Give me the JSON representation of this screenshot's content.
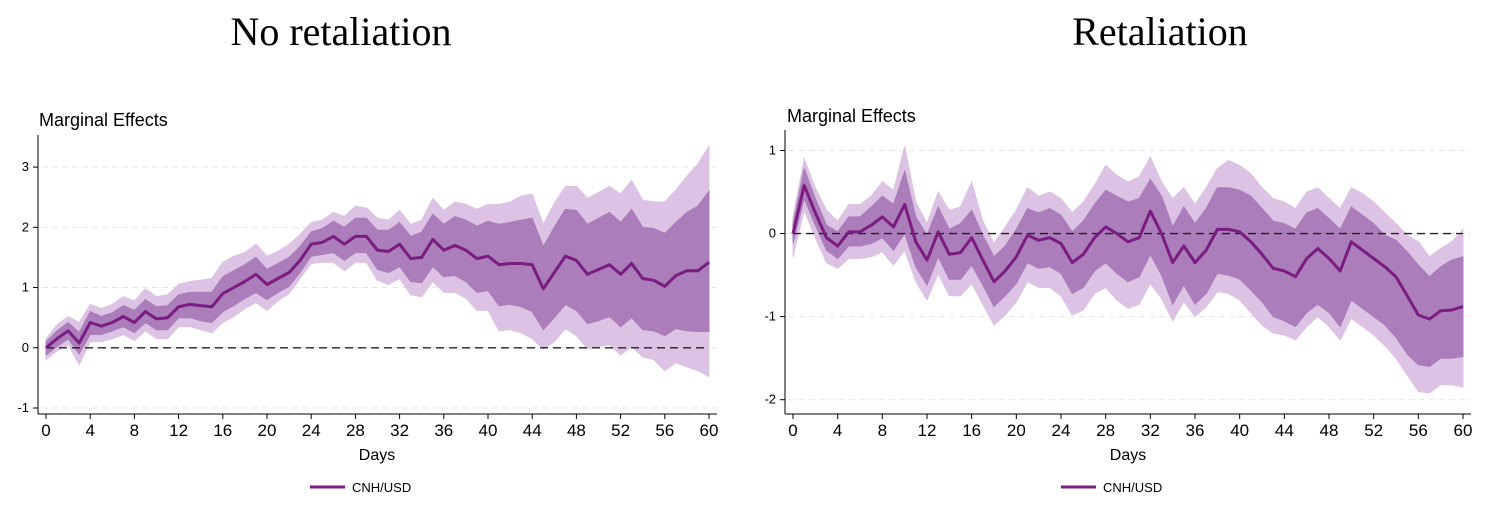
{
  "panels": [
    {
      "title": "No retaliation"
    },
    {
      "title": "Retaliation"
    }
  ],
  "chart_data": [
    {
      "type": "area",
      "title": "No retaliation",
      "ylabel": "Marginal Effects",
      "xlabel": "Days",
      "xlim": [
        0,
        60
      ],
      "ylim": [
        -1,
        3.4
      ],
      "xticks": [
        0,
        4,
        8,
        12,
        16,
        20,
        24,
        28,
        32,
        36,
        40,
        44,
        48,
        52,
        56,
        60
      ],
      "yticks": [
        -1,
        0,
        1,
        2,
        3
      ],
      "grid": true,
      "reference_line": 0,
      "legend_position": "bottom-center",
      "colors": {
        "line": "#7a1c82",
        "inner_band": "#ab7dba",
        "outer_band": "#dcc3e3"
      },
      "series": [
        {
          "name": "CNH/USD",
          "x": [
            0,
            1,
            2,
            3,
            4,
            5,
            6,
            7,
            8,
            9,
            10,
            11,
            12,
            13,
            14,
            15,
            16,
            17,
            18,
            19,
            20,
            21,
            22,
            23,
            24,
            25,
            26,
            27,
            28,
            29,
            30,
            31,
            32,
            33,
            34,
            35,
            36,
            37,
            38,
            39,
            40,
            41,
            42,
            43,
            44,
            45,
            46,
            47,
            48,
            49,
            50,
            51,
            52,
            53,
            54,
            55,
            56,
            57,
            58,
            59,
            60
          ],
          "y": [
            0.0,
            0.15,
            0.28,
            0.08,
            0.42,
            0.36,
            0.42,
            0.52,
            0.42,
            0.6,
            0.48,
            0.5,
            0.68,
            0.72,
            0.7,
            0.68,
            0.9,
            1.0,
            1.1,
            1.22,
            1.05,
            1.15,
            1.25,
            1.45,
            1.72,
            1.75,
            1.85,
            1.72,
            1.85,
            1.85,
            1.62,
            1.6,
            1.72,
            1.48,
            1.5,
            1.8,
            1.62,
            1.7,
            1.62,
            1.48,
            1.52,
            1.38,
            1.4,
            1.4,
            1.38,
            0.98,
            1.25,
            1.52,
            1.45,
            1.22,
            1.3,
            1.38,
            1.22,
            1.4,
            1.15,
            1.12,
            1.02,
            1.2,
            1.28,
            1.28,
            1.42
          ],
          "ci_inner": {
            "lower": [
              -0.12,
              0.02,
              0.15,
              -0.1,
              0.22,
              0.22,
              0.28,
              0.35,
              0.25,
              0.42,
              0.3,
              0.3,
              0.5,
              0.5,
              0.45,
              0.42,
              0.6,
              0.7,
              0.82,
              0.92,
              0.8,
              0.92,
              1.02,
              1.25,
              1.52,
              1.55,
              1.58,
              1.45,
              1.58,
              1.58,
              1.3,
              1.25,
              1.35,
              1.1,
              1.08,
              1.35,
              1.18,
              1.2,
              1.1,
              0.92,
              0.95,
              0.7,
              0.72,
              0.68,
              0.6,
              0.3,
              0.5,
              0.72,
              0.62,
              0.4,
              0.45,
              0.52,
              0.35,
              0.5,
              0.3,
              0.28,
              0.2,
              0.32,
              0.28,
              0.27,
              0.27
            ],
            "upper": [
              0.1,
              0.28,
              0.42,
              0.25,
              0.6,
              0.52,
              0.58,
              0.7,
              0.62,
              0.8,
              0.68,
              0.7,
              0.88,
              0.92,
              0.92,
              0.92,
              1.18,
              1.28,
              1.38,
              1.5,
              1.3,
              1.4,
              1.5,
              1.68,
              1.92,
              1.98,
              2.1,
              2.0,
              2.15,
              2.15,
              1.95,
              1.95,
              2.08,
              1.85,
              1.92,
              2.22,
              2.05,
              2.18,
              2.12,
              2.02,
              2.1,
              2.05,
              2.08,
              2.12,
              2.15,
              1.68,
              2.0,
              2.3,
              2.28,
              2.05,
              2.15,
              2.25,
              2.08,
              2.3,
              2.0,
              1.98,
              1.9,
              2.08,
              2.25,
              2.35,
              2.6
            ]
          },
          "ci_outer": {
            "lower": [
              -0.2,
              -0.05,
              0.05,
              -0.28,
              0.1,
              0.1,
              0.15,
              0.22,
              0.12,
              0.28,
              0.15,
              0.15,
              0.35,
              0.35,
              0.3,
              0.25,
              0.42,
              0.52,
              0.65,
              0.75,
              0.62,
              0.78,
              0.9,
              1.15,
              1.4,
              1.42,
              1.42,
              1.28,
              1.42,
              1.42,
              1.12,
              1.05,
              1.15,
              0.88,
              0.85,
              1.1,
              0.92,
              0.92,
              0.82,
              0.62,
              0.62,
              0.28,
              0.3,
              0.25,
              0.15,
              -0.02,
              0.1,
              0.32,
              0.2,
              -0.02,
              0.02,
              0.05,
              -0.12,
              0.02,
              -0.15,
              -0.2,
              -0.38,
              -0.25,
              -0.32,
              -0.38,
              -0.48
            ],
            "upper": [
              0.15,
              0.38,
              0.52,
              0.42,
              0.72,
              0.65,
              0.72,
              0.85,
              0.78,
              0.98,
              0.85,
              0.88,
              1.05,
              1.1,
              1.12,
              1.15,
              1.42,
              1.52,
              1.58,
              1.72,
              1.52,
              1.6,
              1.72,
              1.88,
              2.08,
              2.12,
              2.25,
              2.18,
              2.35,
              2.32,
              2.15,
              2.12,
              2.28,
              2.05,
              2.12,
              2.48,
              2.28,
              2.42,
              2.38,
              2.3,
              2.38,
              2.38,
              2.42,
              2.52,
              2.55,
              2.05,
              2.4,
              2.68,
              2.68,
              2.48,
              2.58,
              2.68,
              2.55,
              2.78,
              2.45,
              2.42,
              2.42,
              2.62,
              2.85,
              3.05,
              3.35
            ]
          }
        }
      ]
    },
    {
      "type": "area",
      "title": "Retaliation",
      "ylabel": "Marginal Effects",
      "xlabel": "Days",
      "xlim": [
        0,
        60
      ],
      "ylim": [
        -2.1,
        1.15
      ],
      "xticks": [
        0,
        4,
        8,
        12,
        16,
        20,
        24,
        28,
        32,
        36,
        40,
        44,
        48,
        52,
        56,
        60
      ],
      "yticks": [
        -2,
        -1,
        0,
        1
      ],
      "grid": true,
      "reference_line": 0,
      "legend_position": "bottom-center",
      "colors": {
        "line": "#7a1c82",
        "inner_band": "#ab7dba",
        "outer_band": "#dcc3e3"
      },
      "series": [
        {
          "name": "CNH/USD",
          "x": [
            0,
            1,
            2,
            3,
            4,
            5,
            6,
            7,
            8,
            9,
            10,
            11,
            12,
            13,
            14,
            15,
            16,
            17,
            18,
            19,
            20,
            21,
            22,
            23,
            24,
            25,
            26,
            27,
            28,
            29,
            30,
            31,
            32,
            33,
            34,
            35,
            36,
            37,
            38,
            39,
            40,
            41,
            42,
            43,
            44,
            45,
            46,
            47,
            48,
            49,
            50,
            51,
            52,
            53,
            54,
            55,
            56,
            57,
            58,
            59,
            60
          ],
          "y": [
            0.0,
            0.58,
            0.25,
            -0.05,
            -0.15,
            0.02,
            0.02,
            0.1,
            0.2,
            0.08,
            0.35,
            -0.1,
            -0.32,
            0.02,
            -0.25,
            -0.23,
            -0.05,
            -0.32,
            -0.58,
            -0.45,
            -0.28,
            -0.02,
            -0.08,
            -0.05,
            -0.12,
            -0.35,
            -0.25,
            -0.05,
            0.08,
            0.0,
            -0.1,
            -0.05,
            0.27,
            0.0,
            -0.35,
            -0.15,
            -0.35,
            -0.2,
            0.05,
            0.05,
            0.02,
            -0.1,
            -0.25,
            -0.42,
            -0.45,
            -0.52,
            -0.3,
            -0.18,
            -0.3,
            -0.45,
            -0.1,
            -0.2,
            -0.3,
            -0.4,
            -0.52,
            -0.75,
            -0.98,
            -1.03,
            -0.93,
            -0.92,
            -0.88
          ],
          "ci_inner": {
            "lower": [
              -0.12,
              0.42,
              0.1,
              -0.2,
              -0.3,
              -0.15,
              -0.15,
              -0.12,
              -0.05,
              -0.2,
              0.0,
              -0.4,
              -0.62,
              -0.28,
              -0.55,
              -0.55,
              -0.38,
              -0.62,
              -0.88,
              -0.75,
              -0.6,
              -0.35,
              -0.42,
              -0.4,
              -0.48,
              -0.72,
              -0.65,
              -0.45,
              -0.35,
              -0.48,
              -0.58,
              -0.52,
              -0.25,
              -0.5,
              -0.85,
              -0.62,
              -0.85,
              -0.72,
              -0.48,
              -0.5,
              -0.55,
              -0.68,
              -0.82,
              -1.0,
              -1.05,
              -1.12,
              -0.95,
              -0.85,
              -0.95,
              -1.12,
              -0.8,
              -0.9,
              -1.0,
              -1.1,
              -1.25,
              -1.45,
              -1.58,
              -1.6,
              -1.5,
              -1.5,
              -1.48
            ],
            "upper": [
              0.12,
              0.78,
              0.42,
              0.1,
              0.02,
              0.2,
              0.2,
              0.32,
              0.45,
              0.35,
              0.75,
              0.2,
              -0.02,
              0.32,
              0.05,
              0.12,
              0.28,
              -0.02,
              -0.28,
              -0.15,
              0.05,
              0.3,
              0.25,
              0.3,
              0.22,
              0.02,
              0.15,
              0.35,
              0.52,
              0.45,
              0.38,
              0.42,
              0.65,
              0.45,
              0.08,
              0.32,
              0.12,
              0.3,
              0.55,
              0.55,
              0.52,
              0.45,
              0.3,
              0.15,
              0.12,
              0.05,
              0.25,
              0.3,
              0.18,
              0.05,
              0.32,
              0.22,
              0.12,
              -0.02,
              -0.08,
              -0.22,
              -0.38,
              -0.52,
              -0.4,
              -0.32,
              -0.28
            ]
          },
          "ci_outer": {
            "lower": [
              -0.28,
              0.28,
              -0.05,
              -0.35,
              -0.42,
              -0.3,
              -0.3,
              -0.28,
              -0.22,
              -0.38,
              -0.2,
              -0.58,
              -0.8,
              -0.48,
              -0.75,
              -0.75,
              -0.6,
              -0.85,
              -1.1,
              -0.98,
              -0.82,
              -0.58,
              -0.65,
              -0.65,
              -0.75,
              -0.98,
              -0.92,
              -0.72,
              -0.65,
              -0.8,
              -0.9,
              -0.85,
              -0.6,
              -0.78,
              -1.05,
              -0.82,
              -1.0,
              -0.88,
              -0.7,
              -0.72,
              -0.8,
              -0.95,
              -1.1,
              -1.2,
              -1.22,
              -1.28,
              -1.12,
              -1.0,
              -1.12,
              -1.28,
              -1.02,
              -1.12,
              -1.22,
              -1.35,
              -1.5,
              -1.7,
              -1.9,
              -1.92,
              -1.82,
              -1.82,
              -1.85
            ],
            "upper": [
              0.2,
              0.9,
              0.55,
              0.28,
              0.15,
              0.35,
              0.35,
              0.45,
              0.62,
              0.52,
              1.05,
              0.38,
              0.12,
              0.5,
              0.28,
              0.32,
              0.62,
              0.15,
              -0.12,
              0.08,
              0.28,
              0.55,
              0.45,
              0.5,
              0.42,
              0.25,
              0.38,
              0.58,
              0.82,
              0.7,
              0.62,
              0.68,
              0.92,
              0.62,
              0.42,
              0.55,
              0.35,
              0.55,
              0.78,
              0.88,
              0.82,
              0.72,
              0.55,
              0.42,
              0.38,
              0.3,
              0.5,
              0.55,
              0.42,
              0.3,
              0.55,
              0.48,
              0.38,
              0.25,
              0.12,
              -0.02,
              -0.1,
              -0.28,
              -0.18,
              -0.1,
              0.05
            ]
          }
        }
      ]
    }
  ]
}
